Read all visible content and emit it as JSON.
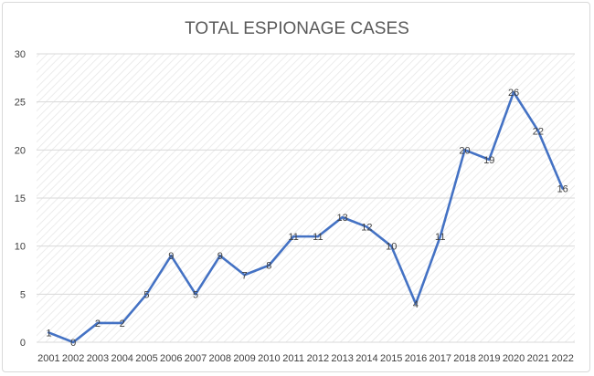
{
  "chart_data": {
    "type": "line",
    "title": "TOTAL ESPIONAGE CASES",
    "xlabel": "",
    "ylabel": "",
    "categories": [
      "2001",
      "2002",
      "2003",
      "2004",
      "2005",
      "2006",
      "2007",
      "2008",
      "2009",
      "2010",
      "2011",
      "2012",
      "2013",
      "2014",
      "2015",
      "2016",
      "2017",
      "2018",
      "2019",
      "2020",
      "2021",
      "2022"
    ],
    "series": [
      {
        "values": [
          1,
          0,
          2,
          2,
          5,
          9,
          5,
          9,
          7,
          8,
          11,
          11,
          13,
          12,
          10,
          4,
          11,
          20,
          19,
          26,
          22,
          16
        ]
      }
    ],
    "ylim": [
      0,
      30
    ],
    "yticks": [
      0,
      5,
      10,
      15,
      20,
      25,
      30
    ],
    "grid": true,
    "data_labels": true,
    "colors": {
      "line": "#4472c4",
      "grid": "#d9d9d9",
      "plot_hatch": "#e4e4e4"
    }
  }
}
